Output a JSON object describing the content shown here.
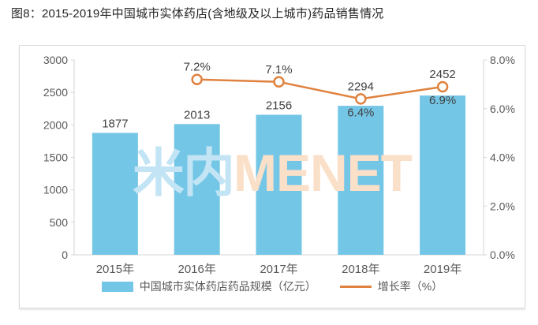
{
  "title": "图8：2015-2019年中国城市实体药店(含地级及以上城市)药品销售情况",
  "watermark": {
    "cjk": "米内",
    "latin": "MENET"
  },
  "colors": {
    "bar": "#74C6E6",
    "line": "#E0823F",
    "marker_fill": "#FFFFFF",
    "axis": "#D4D4D4",
    "tick_text": "#595959",
    "data_label": "#404040",
    "title_text": "#262626",
    "watermark_cjk": "#C2E4F4",
    "watermark_latin": "#FAE0C8"
  },
  "chart_data": {
    "type": "bar",
    "subtype": "bar+line combo, dual axis",
    "categories": [
      "2015年",
      "2016年",
      "2017年",
      "2018年",
      "2019年"
    ],
    "series": [
      {
        "name": "中国城市实体药店药品规模（亿元）",
        "type": "bar",
        "axis": "left",
        "values": [
          1877,
          2013,
          2156,
          2294,
          2452
        ],
        "labels": [
          "1877",
          "2013",
          "2156",
          "2294",
          "2452"
        ]
      },
      {
        "name": "增长率（%）",
        "type": "line",
        "axis": "right",
        "values": [
          null,
          7.2,
          7.1,
          6.4,
          6.9
        ],
        "labels": [
          null,
          "7.2%",
          "7.1%",
          "6.4%",
          "6.9%"
        ]
      }
    ],
    "left_axis": {
      "min": 0,
      "max": 3000,
      "tick_labels": [
        "3000",
        "2500",
        "2000",
        "1500",
        "1000",
        "500",
        "0"
      ]
    },
    "right_axis": {
      "min": 0,
      "max": 8,
      "tick_labels": [
        "8.0%",
        "6.0%",
        "4.0%",
        "2.0%",
        "0.0%"
      ]
    },
    "grid": false,
    "legend_position": "bottom",
    "legend": [
      "中国城市实体药店药品规模（亿元）",
      "增长率（%）"
    ]
  }
}
